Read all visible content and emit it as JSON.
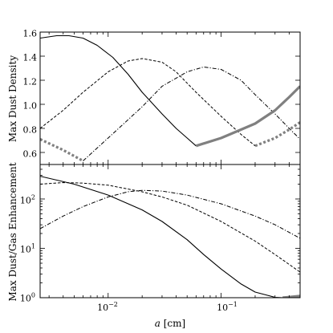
{
  "chart_data": [
    {
      "type": "line",
      "panel": "top",
      "xlabel": "a [cm]",
      "ylabel": "Max Dust Density",
      "xscale": "log",
      "yscale": "linear",
      "xlim": [
        0.0025,
        0.5
      ],
      "ylim": [
        0.5,
        1.6
      ],
      "yticks": [
        0.6,
        0.8,
        1.0,
        1.2,
        1.4,
        1.6
      ],
      "ytick_labels": [
        "0.6",
        "0.8",
        "1.0",
        "1.2",
        "1.4",
        "1.6"
      ],
      "grid": false,
      "series": [
        {
          "style": "solid",
          "color": "#000000",
          "x": [
            0.0025,
            0.0035,
            0.0045,
            0.006,
            0.008,
            0.011,
            0.015,
            0.02,
            0.03,
            0.04,
            0.05,
            0.06
          ],
          "y": [
            1.55,
            1.57,
            1.57,
            1.55,
            1.49,
            1.39,
            1.25,
            1.1,
            0.92,
            0.8,
            0.72,
            0.655
          ]
        },
        {
          "style": "dashed",
          "color": "#000000",
          "x": [
            0.0025,
            0.004,
            0.006,
            0.01,
            0.015,
            0.02,
            0.03,
            0.04,
            0.06,
            0.1,
            0.15,
            0.2
          ],
          "y": [
            0.8,
            0.95,
            1.1,
            1.27,
            1.36,
            1.38,
            1.35,
            1.27,
            1.1,
            0.9,
            0.75,
            0.655
          ]
        },
        {
          "style": "dashdot",
          "color": "#000000",
          "x": [
            0.006,
            0.01,
            0.02,
            0.03,
            0.05,
            0.07,
            0.1,
            0.15,
            0.2,
            0.3,
            0.4,
            0.5
          ],
          "y": [
            0.53,
            0.72,
            0.98,
            1.15,
            1.27,
            1.31,
            1.29,
            1.2,
            1.08,
            0.92,
            0.8,
            0.71
          ]
        },
        {
          "style": "thick-solid",
          "color": "#808080",
          "x": [
            0.06,
            0.1,
            0.15,
            0.2,
            0.3,
            0.4,
            0.5
          ],
          "y": [
            0.655,
            0.72,
            0.79,
            0.84,
            0.95,
            1.06,
            1.15
          ]
        },
        {
          "style": "thick-dotted",
          "color": "#808080",
          "x": [
            0.0025,
            0.004,
            0.006
          ],
          "y": [
            0.71,
            0.62,
            0.53
          ]
        },
        {
          "style": "thick-dotted",
          "color": "#808080",
          "x": [
            0.2,
            0.3,
            0.4,
            0.5
          ],
          "y": [
            0.655,
            0.72,
            0.79,
            0.85
          ]
        }
      ]
    },
    {
      "type": "line",
      "panel": "bottom",
      "xlabel": "a [cm]",
      "ylabel": "Max Dust/Gas Enhancement",
      "xscale": "log",
      "yscale": "log",
      "xlim": [
        0.0025,
        0.5
      ],
      "ylim": [
        1,
        500
      ],
      "xticks": [
        0.01,
        0.1
      ],
      "xtick_labels": [
        "10",
        "10"
      ],
      "xtick_exponents": [
        "−2",
        "−1"
      ],
      "yticks": [
        1,
        10,
        100
      ],
      "ytick_labels": [
        "10",
        "10",
        "10"
      ],
      "ytick_exponents": [
        "0",
        "1",
        "2"
      ],
      "grid": false,
      "series": [
        {
          "style": "solid",
          "color": "#000000",
          "x": [
            0.0025,
            0.005,
            0.01,
            0.02,
            0.03,
            0.05,
            0.07,
            0.1,
            0.15,
            0.2,
            0.3,
            0.35,
            0.4
          ],
          "y": [
            290,
            200,
            120,
            60,
            35,
            15,
            7.5,
            3.8,
            1.9,
            1.3,
            1.02,
            1.0,
            1.0
          ]
        },
        {
          "style": "dashed",
          "color": "#000000",
          "x": [
            0.0025,
            0.004,
            0.006,
            0.01,
            0.02,
            0.03,
            0.05,
            0.1,
            0.2,
            0.3,
            0.5
          ],
          "y": [
            200,
            215,
            210,
            190,
            140,
            110,
            75,
            35,
            14,
            7.5,
            3.3
          ]
        },
        {
          "style": "dashdot",
          "color": "#000000",
          "x": [
            0.0025,
            0.004,
            0.006,
            0.01,
            0.015,
            0.02,
            0.03,
            0.05,
            0.1,
            0.2,
            0.3,
            0.5
          ],
          "y": [
            25,
            45,
            70,
            110,
            140,
            150,
            145,
            120,
            80,
            45,
            30,
            16
          ]
        },
        {
          "style": "thick-solid",
          "color": "#808080",
          "x": [
            0.35,
            0.4,
            0.5
          ],
          "y": [
            1.0,
            1.03,
            1.08
          ]
        }
      ]
    }
  ]
}
